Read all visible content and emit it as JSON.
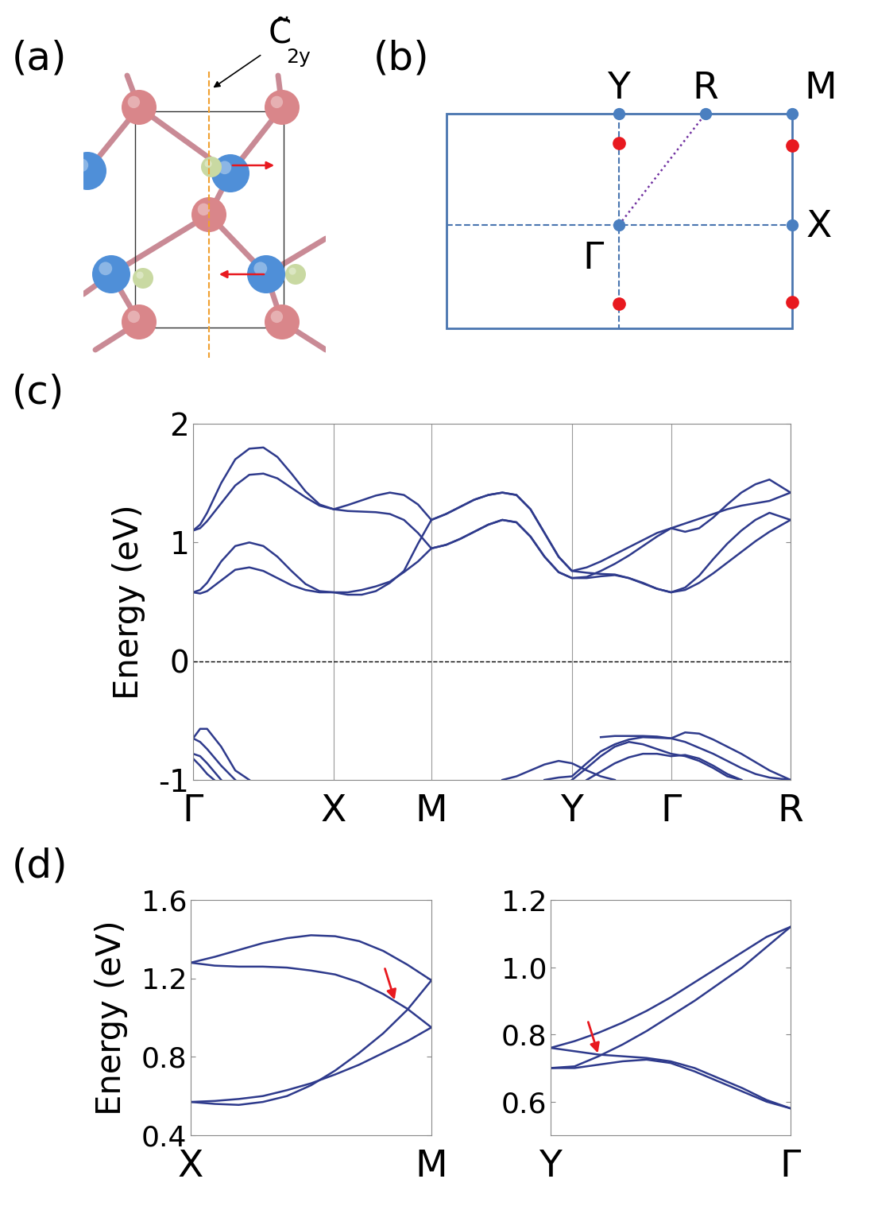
{
  "panels": {
    "a": {
      "label": "(a)",
      "axis_label": {
        "symbol": "C̃",
        "subscript": "2y"
      }
    },
    "b": {
      "label": "(b)",
      "points": [
        "Y",
        "R",
        "M",
        "Γ",
        "X"
      ]
    }
  },
  "chart_data": [
    {
      "type": "line",
      "panel_label": "(c)",
      "y_label": "Energy (eV)",
      "grid": "x",
      "xlim": [
        0,
        4.25
      ],
      "ylim": [
        -1,
        2
      ],
      "yticks": [
        -1,
        0,
        1,
        2
      ],
      "xticks": [
        {
          "value": 0,
          "label": "Γ"
        },
        {
          "value": 1.0,
          "label": "X"
        },
        {
          "value": 1.695,
          "label": "M"
        },
        {
          "value": 2.695,
          "label": "Y"
        },
        {
          "value": 3.4,
          "label": "Γ"
        },
        {
          "value": 4.25,
          "label": "R"
        }
      ],
      "x": [
        0,
        0.05,
        0.1,
        0.2,
        0.3,
        0.4,
        0.5,
        0.6,
        0.7,
        0.8,
        0.9,
        1.0,
        1.1,
        1.2,
        1.3,
        1.4,
        1.5,
        1.6,
        1.695,
        1.8,
        1.9,
        2.0,
        2.1,
        2.2,
        2.3,
        2.4,
        2.5,
        2.6,
        2.695,
        2.8,
        2.9,
        3.0,
        3.1,
        3.2,
        3.3,
        3.4,
        3.5,
        3.6,
        3.7,
        3.8,
        3.9,
        4.0,
        4.1,
        4.25
      ],
      "series": [
        {
          "color": "#2e3a8c",
          "values": [
            0.58,
            0.57,
            0.59,
            0.68,
            0.77,
            0.79,
            0.76,
            0.7,
            0.64,
            0.6,
            0.58,
            0.58,
            0.58,
            0.6,
            0.63,
            0.67,
            0.75,
            0.84,
            0.95,
            0.98,
            1.03,
            1.09,
            1.15,
            1.19,
            1.17,
            1.05,
            0.88,
            0.75,
            0.7,
            0.7,
            0.715,
            0.725,
            0.7,
            0.66,
            0.61,
            0.58,
            0.6,
            0.66,
            0.74,
            0.83,
            0.92,
            1.01,
            1.09,
            1.19
          ]
        },
        {
          "color": "#2e3a8c",
          "values": [
            0.58,
            0.6,
            0.66,
            0.84,
            0.97,
            1.0,
            0.97,
            0.88,
            0.76,
            0.65,
            0.59,
            0.58,
            0.56,
            0.56,
            0.59,
            0.66,
            0.76,
            0.99,
            1.19,
            1.24,
            1.3,
            1.36,
            1.4,
            1.42,
            1.4,
            1.28,
            1.08,
            0.88,
            0.76,
            0.745,
            0.735,
            0.73,
            0.7,
            0.655,
            0.61,
            0.58,
            0.62,
            0.72,
            0.86,
            0.99,
            1.1,
            1.19,
            1.25,
            1.19
          ]
        },
        {
          "color": "#2e3a8c",
          "values": [
            1.1,
            1.12,
            1.18,
            1.33,
            1.48,
            1.57,
            1.58,
            1.54,
            1.46,
            1.38,
            1.31,
            1.28,
            1.265,
            1.26,
            1.255,
            1.24,
            1.19,
            1.08,
            0.95,
            0.98,
            1.03,
            1.09,
            1.15,
            1.19,
            1.17,
            1.05,
            0.88,
            0.75,
            0.7,
            0.71,
            0.76,
            0.82,
            0.89,
            0.97,
            1.05,
            1.12,
            1.16,
            1.2,
            1.24,
            1.28,
            1.31,
            1.33,
            1.35,
            1.42
          ]
        },
        {
          "color": "#2e3a8c",
          "values": [
            1.1,
            1.15,
            1.25,
            1.5,
            1.7,
            1.79,
            1.8,
            1.72,
            1.58,
            1.43,
            1.32,
            1.28,
            1.315,
            1.355,
            1.395,
            1.42,
            1.4,
            1.32,
            1.19,
            1.24,
            1.3,
            1.36,
            1.4,
            1.42,
            1.4,
            1.28,
            1.08,
            0.88,
            0.76,
            0.79,
            0.84,
            0.9,
            0.96,
            1.02,
            1.08,
            1.12,
            1.09,
            1.12,
            1.21,
            1.32,
            1.42,
            1.49,
            1.53,
            1.42
          ]
        },
        {
          "color": "#2e3a8c",
          "x": [
            0,
            0.05,
            0.1,
            0.2,
            0.3,
            0.4
          ],
          "values": [
            -0.65,
            -0.57,
            -0.57,
            -0.72,
            -0.92,
            -1.0
          ]
        },
        {
          "color": "#2e3a8c",
          "x": [
            0,
            0.05,
            0.1,
            0.2,
            0.3
          ],
          "values": [
            -0.65,
            -0.68,
            -0.74,
            -0.88,
            -1.0
          ]
        },
        {
          "color": "#2e3a8c",
          "x": [
            0,
            0.05,
            0.1,
            0.2
          ],
          "values": [
            -0.78,
            -0.8,
            -0.86,
            -1.0
          ]
        },
        {
          "color": "#2e3a8c",
          "x": [
            0,
            0.05,
            0.1,
            0.15
          ],
          "values": [
            -0.82,
            -0.88,
            -0.95,
            -1.0
          ]
        },
        {
          "color": "#2e3a8c",
          "x": [
            2.2,
            2.3,
            2.4,
            2.5,
            2.6,
            2.695,
            2.8,
            2.9,
            3.0
          ],
          "values": [
            -1.0,
            -0.97,
            -0.92,
            -0.87,
            -0.84,
            -0.86,
            -0.92,
            -0.97,
            -1.0
          ]
        },
        {
          "color": "#2e3a8c",
          "x": [
            2.5,
            2.6,
            2.695,
            2.8,
            2.9,
            3.0,
            3.1,
            3.2,
            3.3,
            3.4,
            3.5,
            3.6,
            3.7,
            3.8,
            3.9,
            4.0,
            4.1,
            4.25
          ],
          "values": [
            -1.0,
            -0.98,
            -0.97,
            -0.86,
            -0.76,
            -0.7,
            -0.66,
            -0.64,
            -0.645,
            -0.65,
            -0.68,
            -0.73,
            -0.78,
            -0.84,
            -0.9,
            -0.95,
            -0.98,
            -1.0
          ]
        },
        {
          "color": "#2e3a8c",
          "x": [
            2.695,
            2.8,
            2.9,
            3.0,
            3.1,
            3.2,
            3.3,
            3.4,
            3.5,
            3.6,
            3.7,
            3.8,
            3.9
          ],
          "values": [
            -1.0,
            -0.9,
            -0.8,
            -0.72,
            -0.68,
            -0.7,
            -0.74,
            -0.78,
            -0.8,
            -0.84,
            -0.9,
            -0.97,
            -1.0
          ]
        },
        {
          "color": "#2e3a8c",
          "x": [
            2.9,
            3.0,
            3.1,
            3.2,
            3.3,
            3.4,
            3.5,
            3.6,
            3.7,
            3.8,
            3.9,
            4.0,
            4.1,
            4.25
          ],
          "values": [
            -0.64,
            -0.63,
            -0.63,
            -0.63,
            -0.635,
            -0.65,
            -0.6,
            -0.61,
            -0.66,
            -0.72,
            -0.78,
            -0.85,
            -0.92,
            -1.0
          ]
        },
        {
          "color": "#2e3a8c",
          "x": [
            2.8,
            2.9,
            3.0,
            3.1,
            3.2,
            3.3,
            3.4,
            3.5,
            3.6,
            3.7,
            3.8,
            3.9
          ],
          "values": [
            -1.0,
            -0.93,
            -0.86,
            -0.81,
            -0.78,
            -0.78,
            -0.8,
            -0.79,
            -0.82,
            -0.88,
            -0.95,
            -1.0
          ]
        },
        {
          "color": "#000000",
          "line_style": "dashed",
          "x": [
            0,
            4.25
          ],
          "values": [
            0,
            0
          ]
        }
      ]
    },
    {
      "type": "line",
      "panel_label": "(d)",
      "y_label": "Energy (eV)",
      "xlim": [
        0,
        1
      ],
      "ylim": [
        0.4,
        1.6
      ],
      "yticks": [
        0.4,
        0.8,
        1.2,
        1.6
      ],
      "xticks": [
        {
          "value": 0,
          "label": "X"
        },
        {
          "value": 1,
          "label": "M"
        }
      ],
      "x": [
        0,
        0.1,
        0.2,
        0.3,
        0.4,
        0.5,
        0.6,
        0.7,
        0.8,
        0.9,
        1.0
      ],
      "series": [
        {
          "color": "#2e3a8c",
          "values": [
            1.28,
            1.31,
            1.345,
            1.38,
            1.405,
            1.42,
            1.415,
            1.39,
            1.34,
            1.27,
            1.19
          ]
        },
        {
          "color": "#2e3a8c",
          "values": [
            1.28,
            1.265,
            1.26,
            1.26,
            1.255,
            1.24,
            1.22,
            1.18,
            1.12,
            1.045,
            0.95
          ]
        },
        {
          "color": "#2e3a8c",
          "values": [
            0.57,
            0.56,
            0.555,
            0.57,
            0.6,
            0.655,
            0.73,
            0.82,
            0.92,
            1.04,
            1.19
          ]
        },
        {
          "color": "#2e3a8c",
          "values": [
            0.57,
            0.575,
            0.585,
            0.6,
            0.63,
            0.665,
            0.71,
            0.76,
            0.82,
            0.88,
            0.95
          ]
        }
      ],
      "annotations": [
        {
          "x": 0.85,
          "y": 1.08,
          "color": "#e8191f"
        }
      ]
    },
    {
      "type": "line",
      "xlim": [
        0,
        1
      ],
      "ylim": [
        0.5,
        1.2
      ],
      "yticks": [
        0.6,
        0.8,
        {
          "value": 1.0,
          "label": "1.0"
        },
        1.2
      ],
      "xticks": [
        {
          "value": 0,
          "label": "Y"
        },
        {
          "value": 1,
          "label": "Γ"
        }
      ],
      "x": [
        0,
        0.1,
        0.2,
        0.3,
        0.4,
        0.5,
        0.6,
        0.7,
        0.8,
        0.9,
        1.0
      ],
      "series": [
        {
          "color": "#2e3a8c",
          "values": [
            0.76,
            0.78,
            0.805,
            0.835,
            0.87,
            0.91,
            0.955,
            1.0,
            1.045,
            1.09,
            1.12
          ]
        },
        {
          "color": "#2e3a8c",
          "values": [
            0.76,
            0.75,
            0.74,
            0.735,
            0.73,
            0.72,
            0.7,
            0.67,
            0.64,
            0.605,
            0.58
          ]
        },
        {
          "color": "#2e3a8c",
          "values": [
            0.7,
            0.705,
            0.735,
            0.77,
            0.81,
            0.855,
            0.9,
            0.95,
            1.0,
            1.06,
            1.12
          ]
        },
        {
          "color": "#2e3a8c",
          "values": [
            0.7,
            0.7,
            0.71,
            0.72,
            0.725,
            0.715,
            0.69,
            0.66,
            0.63,
            0.6,
            0.58
          ]
        }
      ],
      "annotations": [
        {
          "x": 0.2,
          "y": 0.738,
          "color": "#e8191f"
        }
      ]
    }
  ]
}
